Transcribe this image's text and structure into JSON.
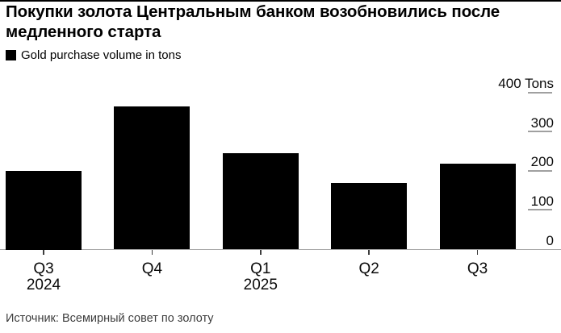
{
  "header": {
    "title": "Покупки золота Центральным банком возобновились после\nмедленного старта"
  },
  "legend": {
    "label": "Gold purchase volume in tons",
    "marker_color": "#000000"
  },
  "chart_data": {
    "type": "bar",
    "title": "Покупки золота Центральным банком возобновились после медленного старта",
    "legend": "Gold purchase volume in tons",
    "categories": [
      "Q3",
      "Q4",
      "Q1",
      "Q2",
      "Q3"
    ],
    "category_year_labels": [
      "2024",
      "",
      "2025",
      "",
      ""
    ],
    "values": [
      200,
      365,
      245,
      170,
      220
    ],
    "unit": "Tons",
    "ylim": [
      0,
      400
    ],
    "yticks": [
      400,
      300,
      200,
      100,
      0
    ],
    "ytick_labels": [
      "400 Tons",
      "300",
      "200",
      "100",
      "0"
    ],
    "value_axis_side": "right",
    "grid": false,
    "legend_position": "top-left",
    "bar_color": "#000000",
    "axis_color": "#a6a6a6"
  },
  "footer": {
    "source": "Источник: Всемирный совет по золоту"
  }
}
